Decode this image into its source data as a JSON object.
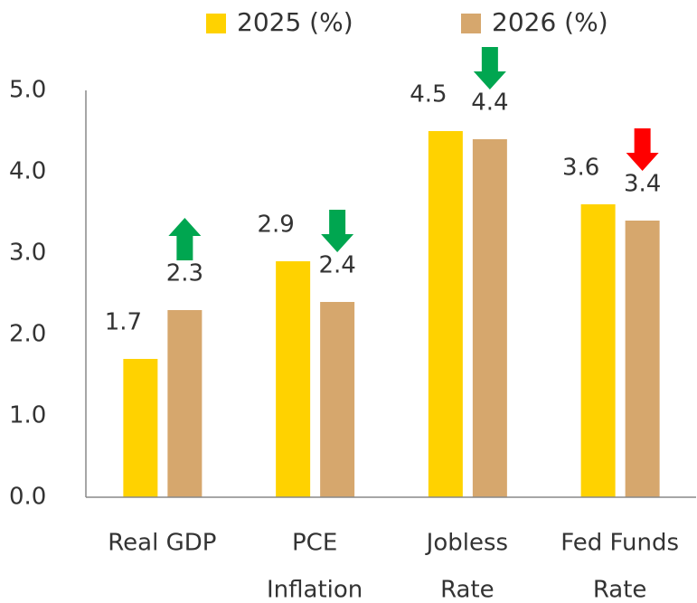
{
  "chart_data": {
    "type": "bar",
    "categories": [
      [
        "Real GDP"
      ],
      [
        "PCE",
        "Inflation"
      ],
      [
        "Jobless",
        "Rate"
      ],
      [
        "Fed Funds",
        "Rate"
      ]
    ],
    "series": [
      {
        "name": "2025 (%)",
        "color": "#ffd200",
        "values": [
          1.7,
          2.9,
          4.5,
          3.6
        ]
      },
      {
        "name": "2026 (%)",
        "color": "#d6a76d",
        "values": [
          2.3,
          2.4,
          4.4,
          3.4
        ]
      }
    ],
    "arrows": [
      {
        "direction": "up",
        "color": "#00a650"
      },
      {
        "direction": "down",
        "color": "#00a650"
      },
      {
        "direction": "down",
        "color": "#00a650"
      },
      {
        "direction": "down",
        "color": "#ff0000"
      }
    ],
    "ylim": [
      0,
      5
    ],
    "yticks": [
      {
        "value": 0,
        "label": "0.0"
      },
      {
        "value": 1,
        "label": "1.0"
      },
      {
        "value": 2,
        "label": "2.0"
      },
      {
        "value": 3,
        "label": "3.0"
      },
      {
        "value": 4,
        "label": "4.0"
      },
      {
        "value": 5,
        "label": "5.0"
      }
    ],
    "grid": false
  }
}
